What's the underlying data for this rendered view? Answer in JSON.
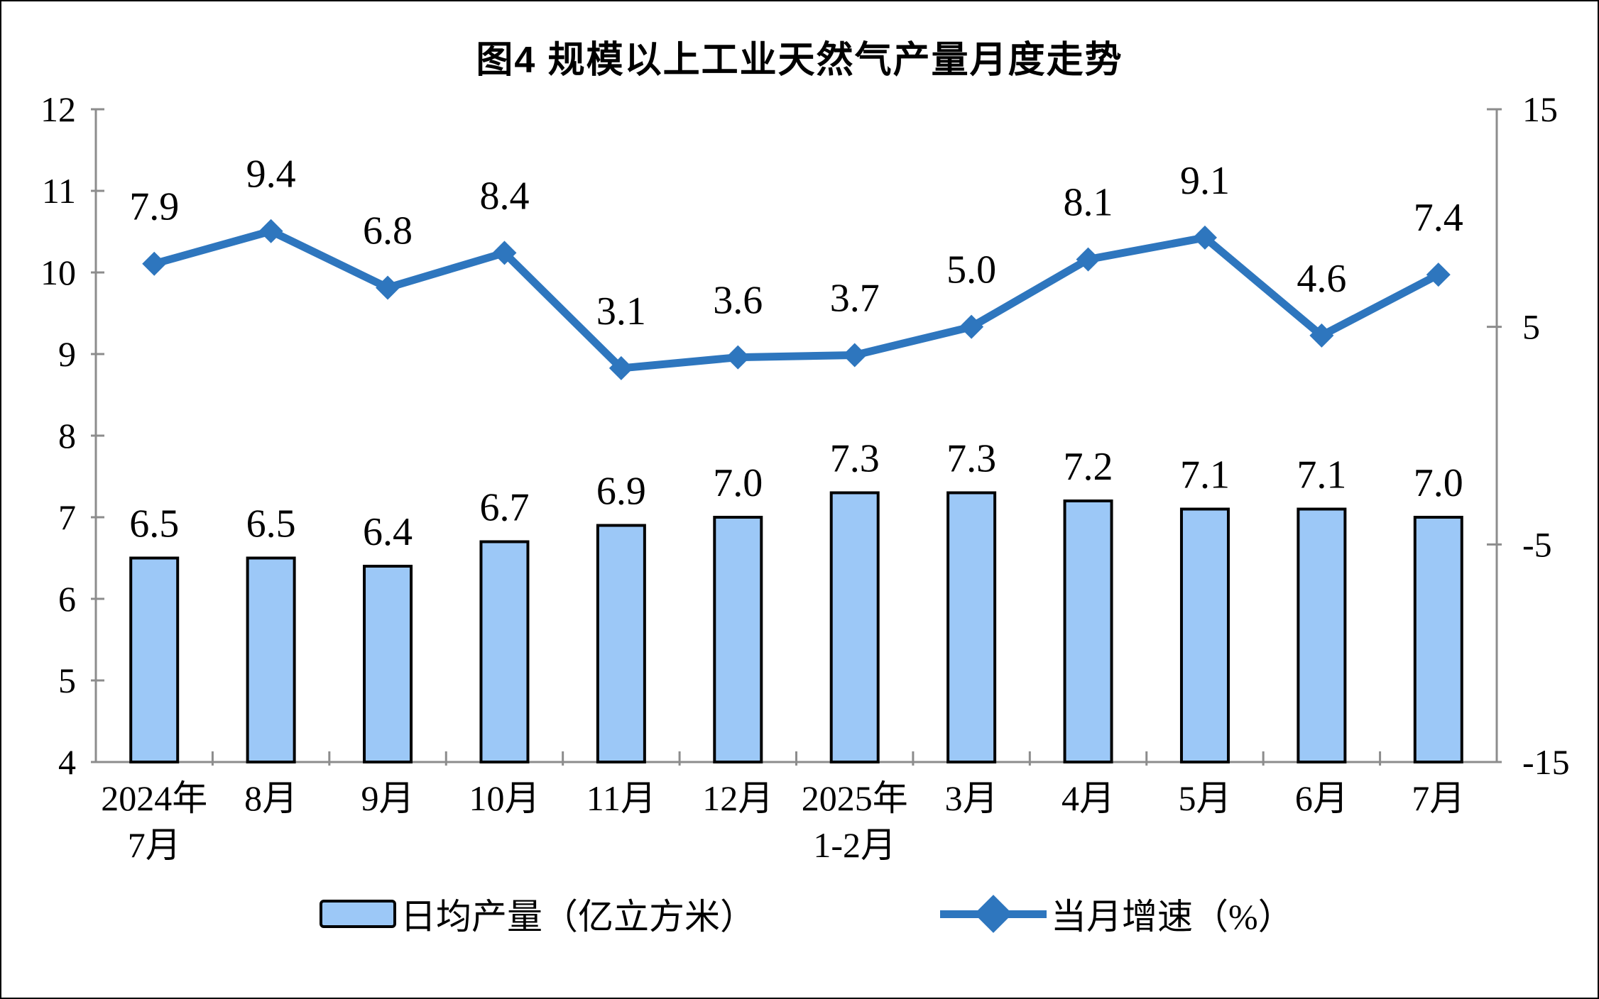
{
  "figure": {
    "title": "图4 规模以上工业天然气产量月度走势"
  },
  "legend": {
    "bar_label": "日均产量（亿立方米）",
    "line_label": "当月增速（%）"
  },
  "colors": {
    "bar_fill": "#9CC8F7",
    "bar_border": "#000000",
    "line": "#2E76BE",
    "axis": "#8C8C8C",
    "text": "#000000"
  },
  "chart_data": {
    "type": "bar+line combo",
    "title": "图4 规模以上工业天然气产量月度走势",
    "categories": [
      "2024年\n7月",
      "8月",
      "9月",
      "10月",
      "11月",
      "12月",
      "2025年\n1-2月",
      "3月",
      "4月",
      "5月",
      "6月",
      "7月"
    ],
    "series": [
      {
        "name": "日均产量（亿立方米）",
        "type": "bar",
        "axis": "left",
        "values": [
          6.5,
          6.5,
          6.4,
          6.7,
          6.9,
          7.0,
          7.3,
          7.3,
          7.2,
          7.1,
          7.1,
          7.0
        ]
      },
      {
        "name": "当月增速（%）",
        "type": "line",
        "axis": "right",
        "values": [
          7.9,
          9.4,
          6.8,
          8.4,
          3.1,
          3.6,
          3.7,
          5.0,
          8.1,
          9.1,
          4.6,
          7.4
        ]
      }
    ],
    "left_axis": {
      "min": 4,
      "max": 12,
      "ticks": [
        4,
        5,
        6,
        7,
        8,
        9,
        10,
        11,
        12
      ]
    },
    "right_axis": {
      "min": -15,
      "max": 15,
      "ticks": [
        -15,
        -5,
        5,
        15
      ]
    },
    "grid": false,
    "data_labels": true,
    "legend_position": "bottom"
  }
}
